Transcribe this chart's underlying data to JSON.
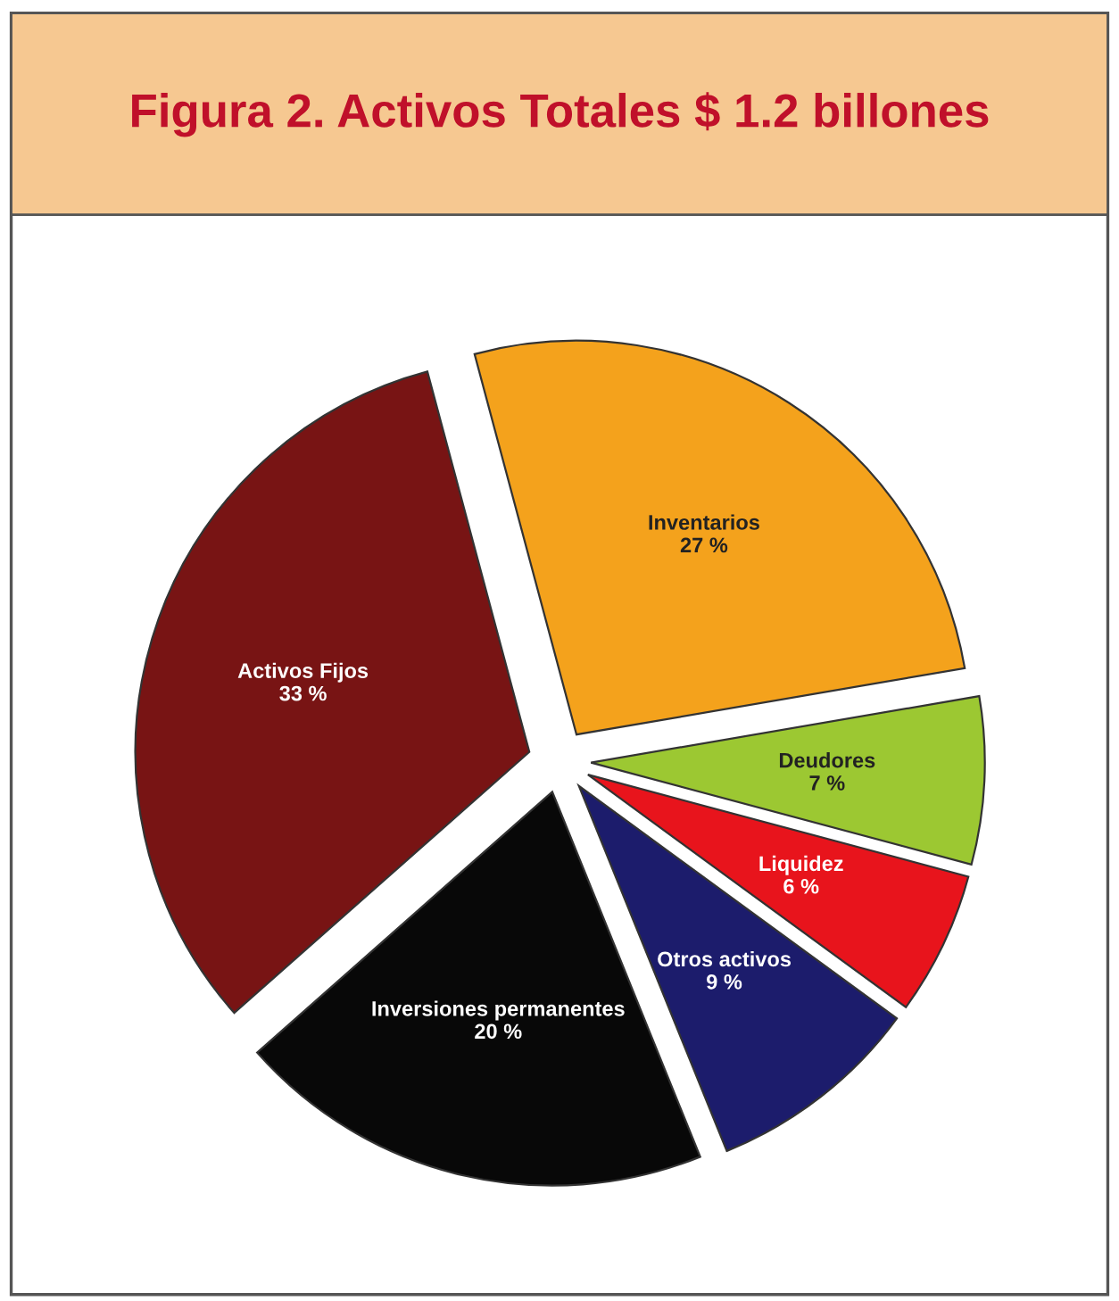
{
  "chart_data": {
    "type": "pie",
    "title": "Figura 2. Activos Totales $ 1.2 billones",
    "categories": [
      "Inventarios",
      "Deudores",
      "Liquidez",
      "Otros activos",
      "Inversiones permanentes",
      "Activos Fijos"
    ],
    "values": [
      27,
      7,
      6,
      9,
      20,
      33
    ],
    "value_labels": [
      "27 %",
      "7 %",
      "6 %",
      "9 %",
      "20 %",
      "33 %"
    ],
    "colors": [
      "#f4a21c",
      "#9cc832",
      "#e8141c",
      "#1c1c6c",
      "#080808",
      "#781414"
    ],
    "legend": false
  }
}
